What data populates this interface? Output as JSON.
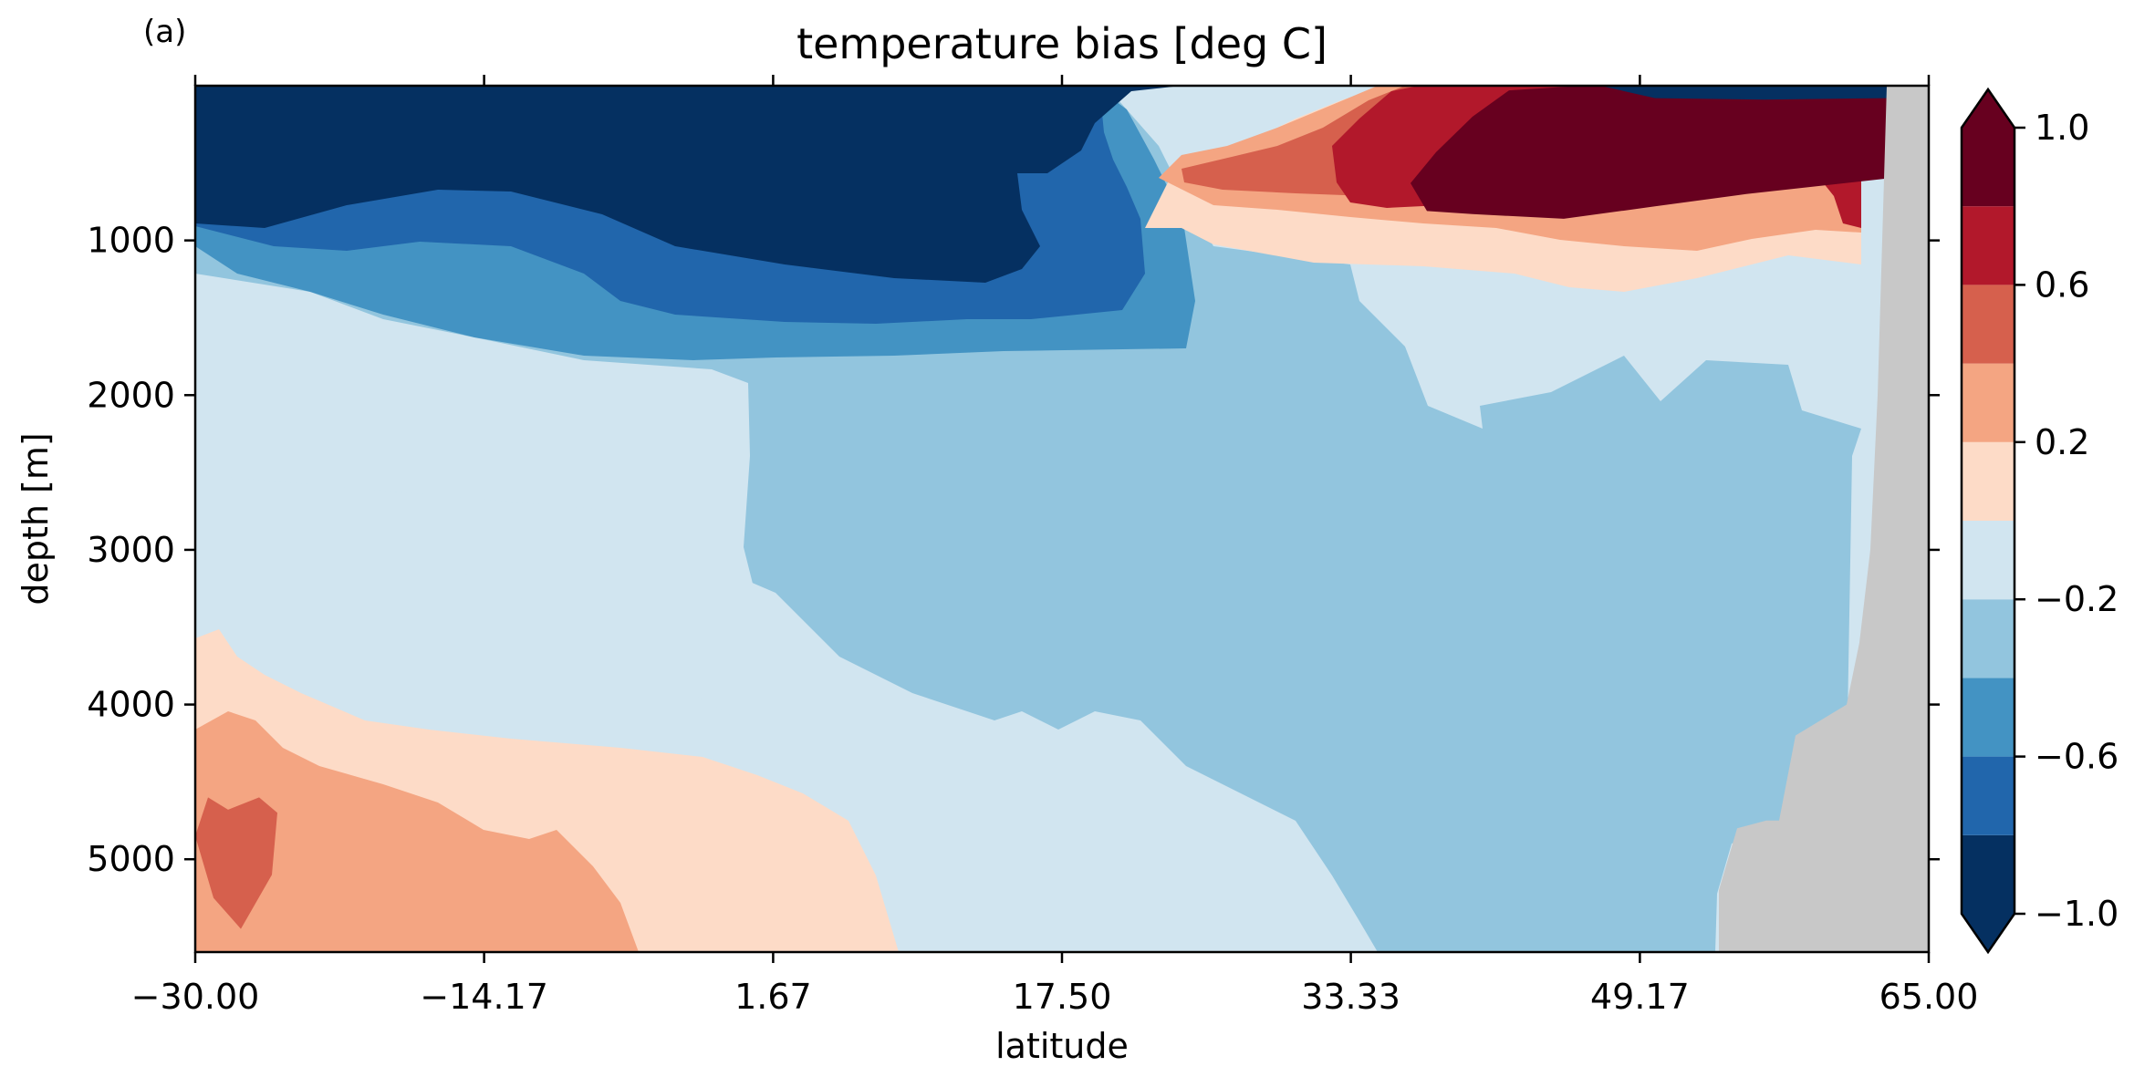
{
  "panel_label": "(a)",
  "chart_data": {
    "type": "heatmap",
    "subtype": "filled-contour",
    "title": "temperature bias [deg C]",
    "xlabel": "latitude",
    "ylabel": "depth [m]",
    "xlim": [
      -30.0,
      65.0
    ],
    "ylim": [
      5600,
      0
    ],
    "y_inverted": true,
    "x_ticks": [
      "-30.00",
      "-14.17",
      "1.67",
      "17.50",
      "33.33",
      "49.17",
      "65.00"
    ],
    "x_tick_values": [
      -30.0,
      -14.17,
      1.67,
      17.5,
      33.33,
      49.17,
      65.0
    ],
    "y_ticks": [
      1000,
      2000,
      3000,
      4000,
      5000
    ],
    "y_tick_labels": [
      "1000",
      "2000",
      "3000",
      "4000",
      "5000"
    ],
    "colorbar": {
      "extend": "both",
      "levels": [
        -1.0,
        -0.8,
        -0.6,
        -0.4,
        -0.2,
        0.0,
        0.2,
        0.4,
        0.6,
        0.8,
        1.0
      ],
      "tick_values": [
        -1.0,
        -0.6,
        -0.2,
        0.2,
        0.6,
        1.0
      ],
      "tick_labels": [
        "−1.0",
        "−0.6",
        "−0.2",
        "0.2",
        "0.6",
        "1.0"
      ],
      "colors": [
        "#053061",
        "#2166ac",
        "#4393c3",
        "#92c5de",
        "#d1e5f0",
        "#fddbc7",
        "#f4a582",
        "#d6604d",
        "#b2182b",
        "#67001f"
      ]
    },
    "land_mask_color": "#c8c8c8",
    "regions": [
      {
        "name": "deep-warm-blob",
        "bias_min": 0.4,
        "bias_max": 0.6,
        "color": "#d6604d",
        "poly": [
          [
            -30,
            4850
          ],
          [
            -29.3,
            4600
          ],
          [
            -28.2,
            4680
          ],
          [
            -26.5,
            4600
          ],
          [
            -25.5,
            4700
          ],
          [
            -25.8,
            5100
          ],
          [
            -27.5,
            5450
          ],
          [
            -29,
            5250
          ]
        ]
      },
      {
        "name": "bottom-right-land",
        "bias_min": null,
        "bias_max": null,
        "color": "#c8c8c8",
        "poly": [
          [
            65,
            0
          ],
          [
            62.7,
            0
          ],
          [
            62.5,
            800
          ],
          [
            62.2,
            2000
          ],
          [
            61.8,
            3000
          ],
          [
            61.2,
            3600
          ],
          [
            60.5,
            4000
          ],
          [
            57.7,
            4200
          ],
          [
            56.8,
            4750
          ],
          [
            56.1,
            4750
          ],
          [
            54.5,
            4800
          ],
          [
            53.5,
            5200
          ],
          [
            53.5,
            5600
          ],
          [
            65,
            5600
          ]
        ]
      },
      {
        "name": "north-warm-max",
        "bias_min": 0.8,
        "bias_max": 1.2,
        "color": "#67001f",
        "poly": [
          [
            42,
            30
          ],
          [
            46,
            0
          ],
          [
            62.7,
            0
          ],
          [
            62.7,
            600
          ],
          [
            55,
            700
          ],
          [
            50,
            780
          ],
          [
            45,
            860
          ],
          [
            40,
            830
          ],
          [
            37.5,
            810
          ],
          [
            36.6,
            630
          ],
          [
            38,
            430
          ],
          [
            40,
            200
          ]
        ]
      },
      {
        "name": "north-surface-cold",
        "bias_min": -1.2,
        "bias_max": -0.8,
        "color": "#053061",
        "poly": [
          [
            47,
            0
          ],
          [
            62.7,
            0
          ],
          [
            62.7,
            80
          ],
          [
            56,
            90
          ],
          [
            50,
            80
          ]
        ]
      }
    ]
  }
}
